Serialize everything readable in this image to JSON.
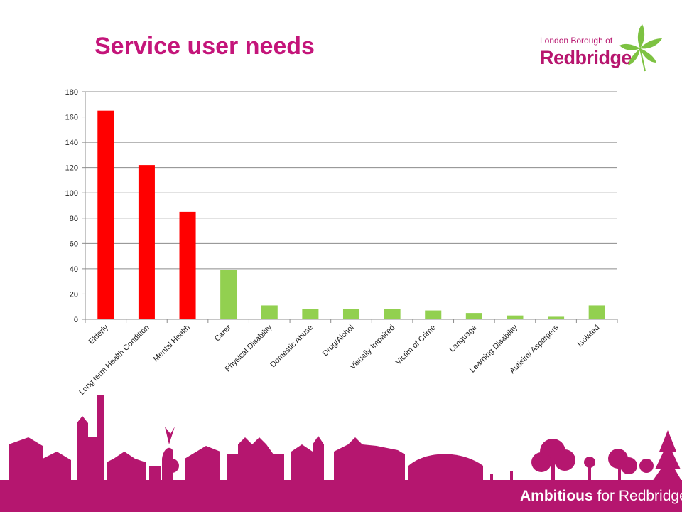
{
  "slide": {
    "title": "Service user needs",
    "logo_small": "London Borough of",
    "logo_big": "Redbridge",
    "footer_strong": "Ambitious",
    "footer_rest": " for Redbridge"
  },
  "colors": {
    "title": "#c4157a",
    "footer_band": "#b5166f",
    "bar_highlight": "#ff0000",
    "bar_normal": "#92d050",
    "leaf": "#7dc242"
  },
  "icons": [
    "leaf-icon"
  ],
  "chart_data": {
    "type": "bar",
    "title": "Service user needs",
    "categories": [
      "Elderly",
      "Long term Health Condition",
      "Mental Health",
      "Carer",
      "Physical Disability",
      "Domestic Abuse",
      "Drug/Alchol",
      "Visually Impaired",
      "Victim of Crime",
      "Language",
      "Learning Disability",
      "Autisim/ Aspergers",
      "Isolated"
    ],
    "values": [
      165,
      122,
      85,
      39,
      11,
      8,
      8,
      8,
      7,
      5,
      3,
      2,
      11
    ],
    "bar_colors": [
      "#ff0000",
      "#ff0000",
      "#ff0000",
      "#92d050",
      "#92d050",
      "#92d050",
      "#92d050",
      "#92d050",
      "#92d050",
      "#92d050",
      "#92d050",
      "#92d050",
      "#92d050"
    ],
    "ylim": [
      0,
      180
    ],
    "yticks": [
      0,
      20,
      40,
      60,
      80,
      100,
      120,
      140,
      160,
      180
    ],
    "grid": true,
    "legend": "none",
    "xlabel": "",
    "ylabel": ""
  }
}
